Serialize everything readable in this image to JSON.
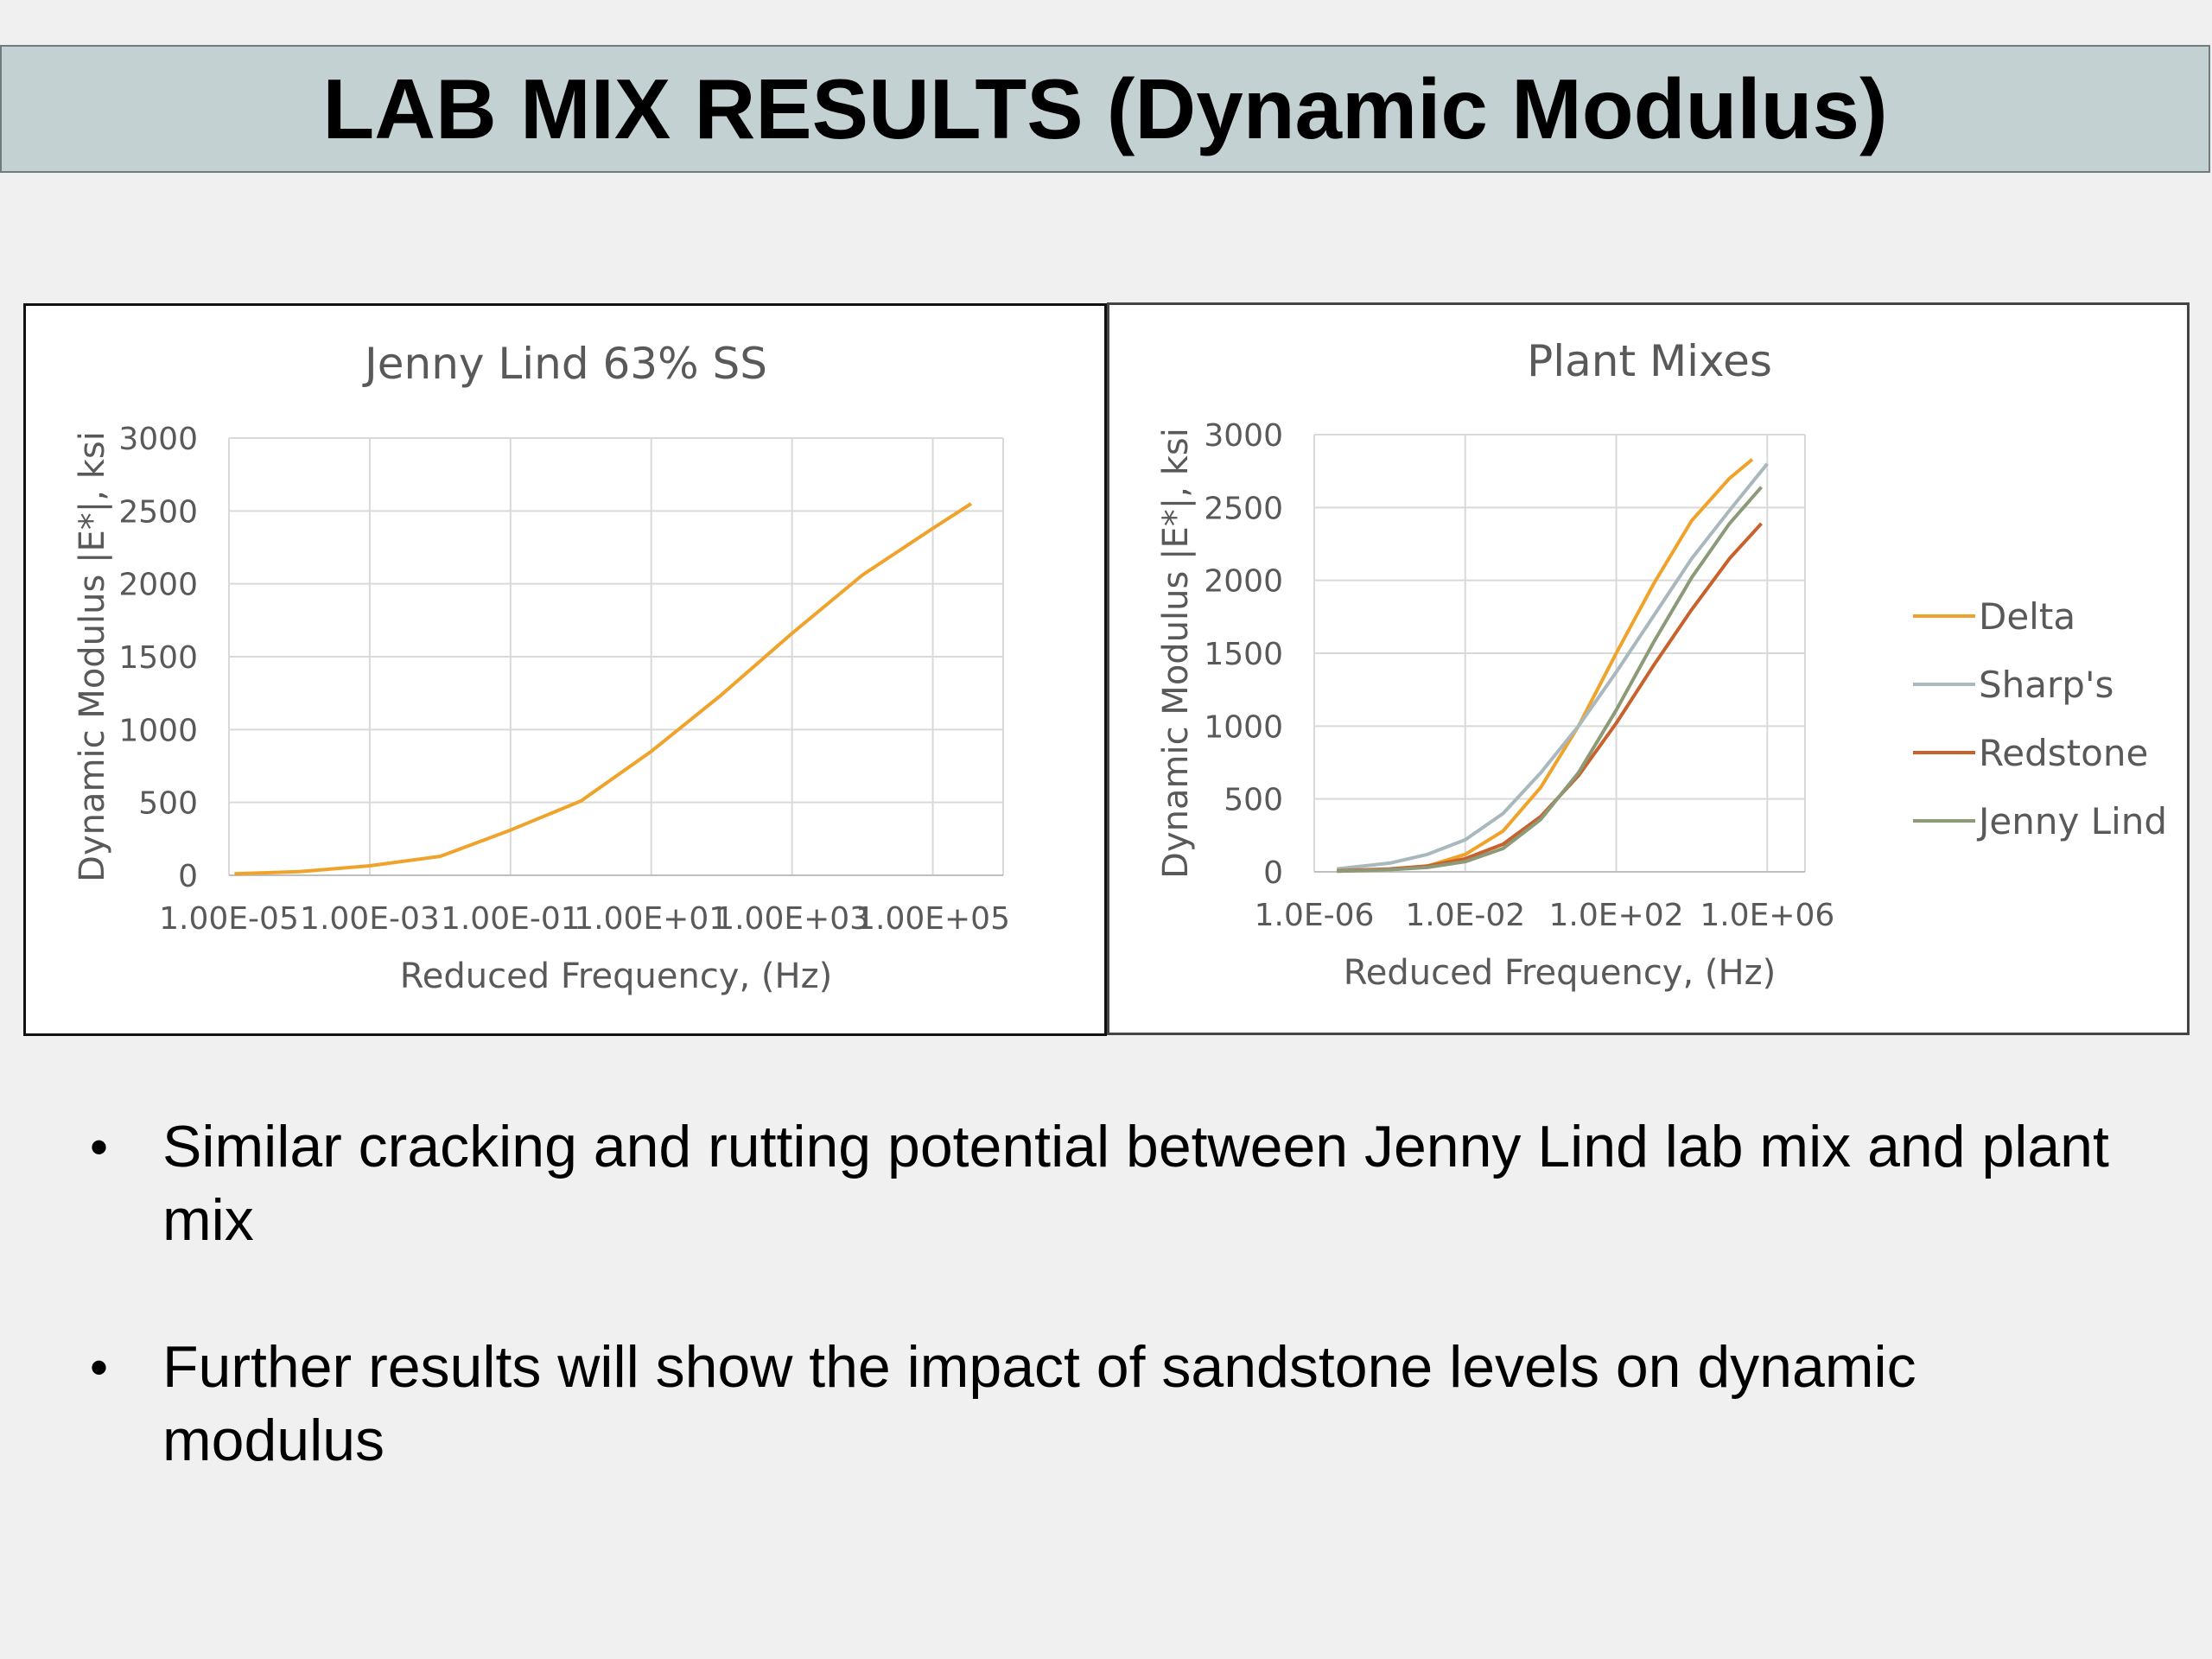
{
  "slide": {
    "title": "LAB MIX RESULTS (Dynamic Modulus)",
    "bullets": [
      "Similar cracking and rutting potential between Jenny Lind lab mix and plant mix",
      "Further results will show the impact of sandstone levels on dynamic modulus"
    ],
    "bullet_symbol": "•"
  },
  "chart_data": [
    {
      "type": "line",
      "title": "Jenny Lind 63% SS",
      "xlabel": "Reduced Frequency, (Hz)",
      "ylabel": "Dynamic Modulus |E*|, ksi",
      "x_scale": "log10",
      "xlim": [
        1e-05,
        1000000.0
      ],
      "ylim": [
        0,
        3000
      ],
      "x_ticks": [
        1e-05,
        0.001,
        0.1,
        10,
        1000,
        100000
      ],
      "x_tick_labels": [
        "1.00E-05",
        "1.00E-03",
        "1.00E-01",
        "1.00E+01",
        "1.00E+03",
        "1.00E+05"
      ],
      "y_ticks": [
        0,
        500,
        1000,
        1500,
        2000,
        2500,
        3000
      ],
      "y_tick_labels": [
        "0",
        "500",
        "1000",
        "1500",
        "2000",
        "2500",
        "3000"
      ],
      "grid": true,
      "legend": "none",
      "series": [
        {
          "color": "#f0a32a",
          "x": [
            1.2e-05,
            0.0001,
            0.001,
            0.01,
            0.1,
            1,
            10,
            100,
            1000,
            10000,
            100000,
            350000
          ],
          "y": [
            10,
            25,
            65,
            130,
            310,
            510,
            850,
            1240,
            1660,
            2060,
            2380,
            2550
          ]
        }
      ]
    },
    {
      "type": "line",
      "title": "Plant Mixes",
      "xlabel": "Reduced Frequency, (Hz)",
      "ylabel": "Dynamic Modulus |E*|, ksi",
      "x_scale": "log10",
      "xlim": [
        1e-06,
        10000000.0
      ],
      "ylim": [
        0,
        3000
      ],
      "x_ticks": [
        1e-06,
        0.01,
        100,
        1000000
      ],
      "x_tick_labels": [
        "1.0E-06",
        "1.0E-02",
        "1.0E+02",
        "1.0E+06"
      ],
      "y_ticks": [
        0,
        500,
        1000,
        1500,
        2000,
        2500,
        3000
      ],
      "y_tick_labels": [
        "0",
        "500",
        "1000",
        "1500",
        "2000",
        "2500",
        "3000"
      ],
      "grid": true,
      "legend": "right",
      "series": [
        {
          "name": "Delta",
          "color": "#f0a32a",
          "x": [
            4e-06,
            0.0001,
            0.001,
            0.01,
            0.1,
            1,
            10,
            100,
            1000,
            10000,
            100000,
            400000
          ],
          "y": [
            5,
            15,
            40,
            120,
            280,
            580,
            1000,
            1500,
            1980,
            2410,
            2700,
            2830
          ]
        },
        {
          "name": "Sharp's",
          "color": "#a9b8bc",
          "x": [
            4e-06,
            0.0001,
            0.001,
            0.01,
            0.1,
            1,
            10,
            100,
            1000,
            10000,
            100000,
            1000000
          ],
          "y": [
            20,
            60,
            120,
            220,
            400,
            680,
            1000,
            1370,
            1760,
            2150,
            2480,
            2800
          ]
        },
        {
          "name": "Redstone",
          "color": "#c8622c",
          "x": [
            4e-06,
            0.0001,
            0.001,
            0.01,
            0.1,
            1,
            10,
            100,
            1000,
            10000,
            100000,
            700000
          ],
          "y": [
            8,
            20,
            40,
            90,
            190,
            380,
            660,
            1020,
            1420,
            1800,
            2150,
            2390
          ]
        },
        {
          "name": "Jenny Lind",
          "color": "#8c9a78",
          "x": [
            4e-06,
            0.0001,
            0.001,
            0.01,
            0.1,
            1,
            10,
            100,
            1000,
            10000,
            100000,
            700000
          ],
          "y": [
            5,
            15,
            30,
            70,
            160,
            360,
            680,
            1110,
            1580,
            2020,
            2390,
            2640
          ]
        }
      ]
    }
  ]
}
